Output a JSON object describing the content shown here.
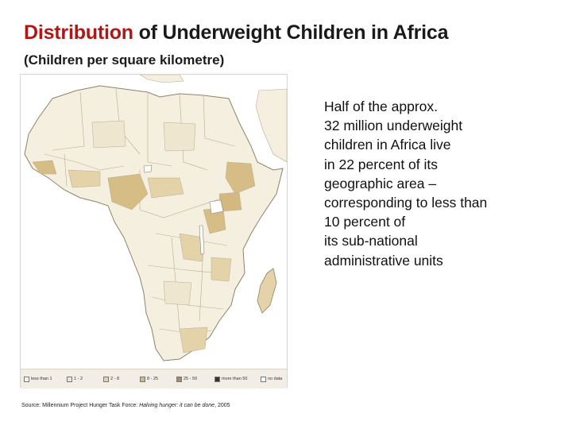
{
  "title": {
    "accent": "Distribution",
    "rest": " of Underweight Children in Africa"
  },
  "subtitle": "(Children per square kilometre)",
  "description_lines": [
    "Half of the approx.",
    "32 million underweight",
    "children in Africa live",
    "in 22 percent of its",
    "geographic area –",
    "corresponding to less than",
    "10 percent of",
    "its sub-national",
    "administrative units"
  ],
  "legend": {
    "items": [
      {
        "label": "less than 1",
        "color": "#f7f3e8"
      },
      {
        "label": "1 - 2",
        "color": "#efe6cf"
      },
      {
        "label": "2 - 8",
        "color": "#e3d3ad"
      },
      {
        "label": "8 - 25",
        "color": "#d3b97f"
      },
      {
        "label": "25 - 50",
        "color": "#a48f5f"
      },
      {
        "label": "more than 50",
        "color": "#3a3327"
      },
      {
        "label": "no data",
        "color": "#ffffff"
      }
    ]
  },
  "source": {
    "prefix": "Source: Millennium Project Hunger Task Force: ",
    "italic": "Halving hunger: it can be done",
    "suffix": ", 2005"
  },
  "map_colors": {
    "land": "#f5efe0",
    "border": "#b9ac91",
    "coast": "#8f8267",
    "dense": "#d6bc85",
    "medium": "#e4d2a8",
    "lake": "#ffffff"
  }
}
